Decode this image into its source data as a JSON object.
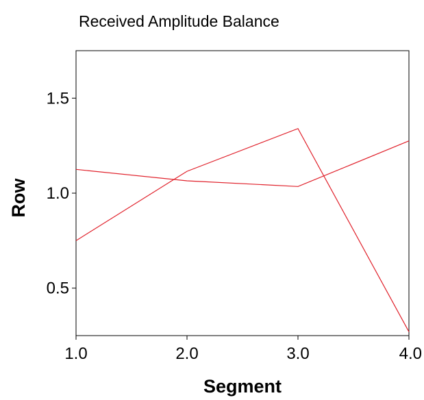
{
  "chart_data": {
    "type": "line",
    "title": "Received Amplitude Balance",
    "xlabel": "Segment",
    "ylabel": "Row",
    "xlim": [
      1.0,
      4.0
    ],
    "ylim": [
      0.25,
      1.75
    ],
    "x_ticks": [
      1.0,
      2.0,
      3.0,
      4.0
    ],
    "x_tick_labels": [
      "1.0",
      "2.0",
      "3.0",
      "4.0"
    ],
    "y_ticks": [
      0.5,
      1.0,
      1.5
    ],
    "y_tick_labels": [
      "0.5",
      "1.0",
      "1.5"
    ],
    "grid": false,
    "legend": "none",
    "line_color": "#e0202a",
    "series": [
      {
        "x": [
          1.0,
          2.0,
          3.0,
          4.0
        ],
        "values": [
          1.125,
          1.065,
          1.035,
          1.275
        ]
      },
      {
        "x": [
          1.0,
          2.0,
          3.0,
          4.0
        ],
        "values": [
          0.75,
          1.115,
          1.34,
          0.27
        ]
      }
    ]
  }
}
